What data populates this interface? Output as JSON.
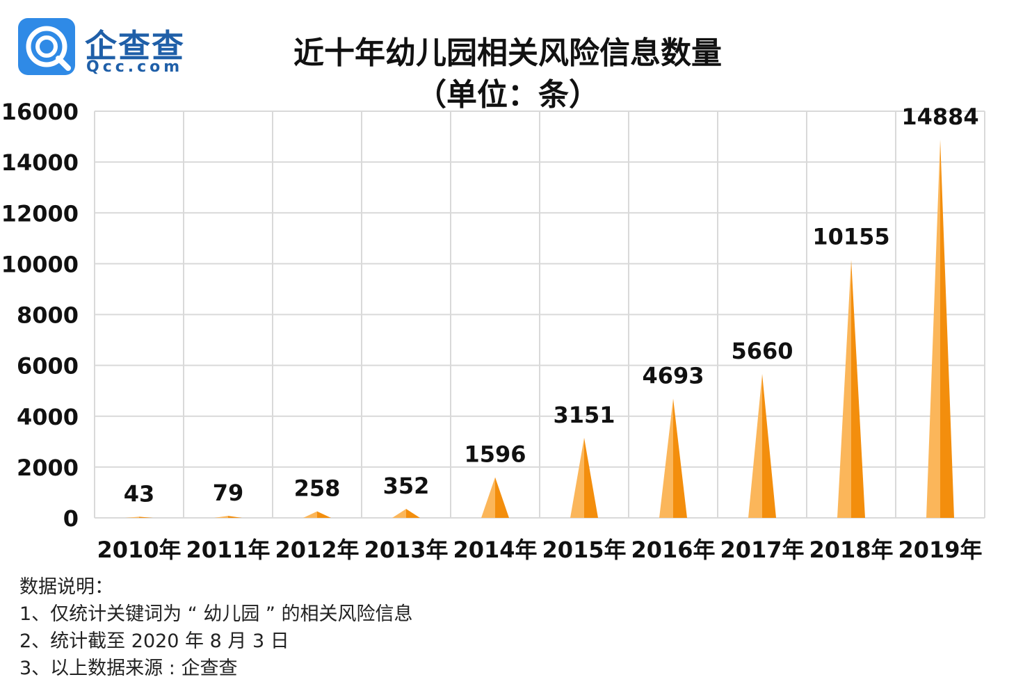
{
  "header": {
    "logo_name": "企查查",
    "logo_domain": "Qcc.com",
    "title": "近十年幼儿园相关风险信息数量",
    "subtitle": "（单位：条）"
  },
  "colors": {
    "brand_blue": "#1f5fa8",
    "badge_blue": "#2f8ae6",
    "bar_light": "#fbb65a",
    "bar_dark": "#f38e0d",
    "grid": "#d9d9d9"
  },
  "chart_data": {
    "type": "bar",
    "bar_shape": "triangle",
    "title": "近十年幼儿园相关风险信息数量",
    "subtitle": "（单位：条）",
    "xlabel": "",
    "ylabel": "",
    "categories": [
      "2010年",
      "2011年",
      "2012年",
      "2013年",
      "2014年",
      "2015年",
      "2016年",
      "2017年",
      "2018年",
      "2019年"
    ],
    "values": [
      43,
      79,
      258,
      352,
      1596,
      3151,
      4693,
      5660,
      10155,
      14884
    ],
    "ylim": [
      0,
      16000
    ],
    "yticks": [
      0,
      2000,
      4000,
      6000,
      8000,
      10000,
      12000,
      14000,
      16000
    ],
    "grid": true,
    "data_labels": true
  },
  "notes": {
    "heading": "数据说明：",
    "items": [
      "1、仅统计关键词为 “ 幼儿园 ” 的相关风险信息",
      "2、统计截至 2020 年 8 月 3 日",
      "3、以上数据来源 : 企查查"
    ]
  }
}
